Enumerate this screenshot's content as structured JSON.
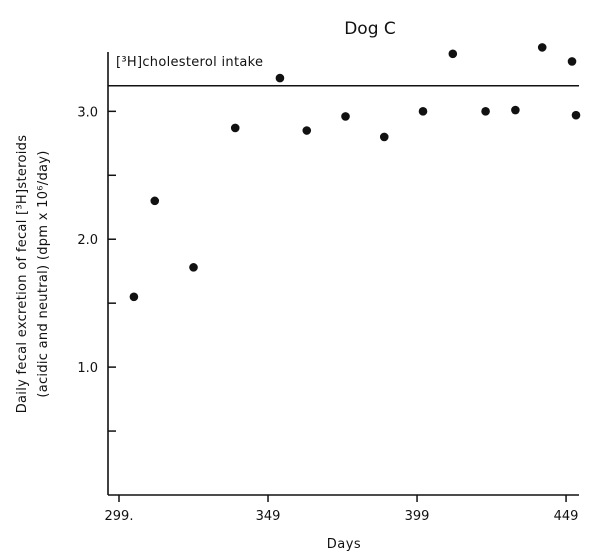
{
  "chart_data": {
    "type": "scatter",
    "title": "Dog C",
    "xlabel": "Days",
    "ylabel_line1": "Daily fecal excretion of fecal [³H]steroids",
    "ylabel_line2": "(acidic and neutral)   (dpm x 10⁶/day)",
    "xlim": [
      299,
      452
    ],
    "ylim": [
      0,
      3.55
    ],
    "x_ticks": [
      299,
      349,
      399,
      449
    ],
    "x_tick_labels": [
      "299.",
      "349",
      "399",
      "449"
    ],
    "y_ticks": [
      1.0,
      2.0,
      3.0
    ],
    "y_tick_labels": [
      "1.0",
      "2.0",
      "3.0"
    ],
    "y_minor_ticks": [
      0.5,
      1.5,
      2.5
    ],
    "reference_line": {
      "label": "[³H]cholesterol intake",
      "value": 3.2
    },
    "points": [
      {
        "x": 304,
        "y": 1.55
      },
      {
        "x": 311,
        "y": 2.3
      },
      {
        "x": 324,
        "y": 1.78
      },
      {
        "x": 338,
        "y": 2.87
      },
      {
        "x": 353,
        "y": 3.26
      },
      {
        "x": 362,
        "y": 2.85
      },
      {
        "x": 375,
        "y": 2.96
      },
      {
        "x": 388,
        "y": 2.8
      },
      {
        "x": 401,
        "y": 3.0
      },
      {
        "x": 411,
        "y": 3.45
      },
      {
        "x": 422,
        "y": 3.0
      },
      {
        "x": 432,
        "y": 3.01
      },
      {
        "x": 441,
        "y": 3.5
      },
      {
        "x": 451,
        "y": 3.39
      },
      {
        "x": 460,
        "y": 2.97
      }
    ],
    "grid": false
  }
}
